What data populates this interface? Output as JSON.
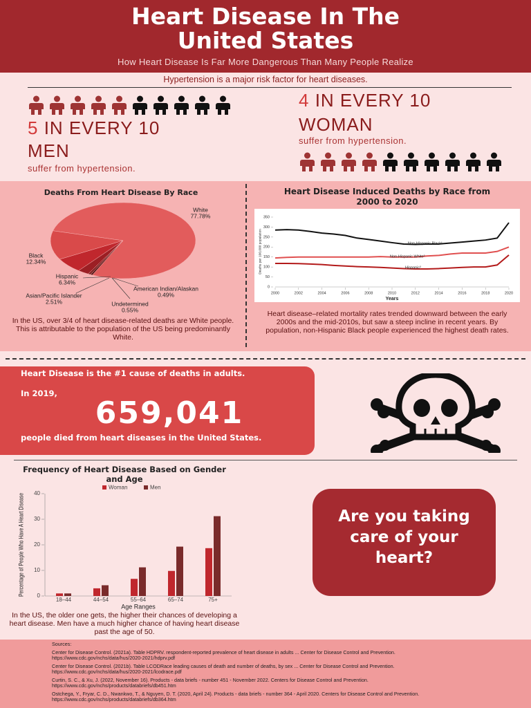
{
  "header": {
    "title": "Heart Disease In The United States",
    "subtitle": "How Heart Disease Is Far More Dangerous Than Many People Realize"
  },
  "hypertension": {
    "heading": "Hypertension is a major risk factor for heart diseases.",
    "men": {
      "number": "5",
      "ratio_text": "IN EVERY 10",
      "group": "MEN",
      "note": "suffer from hypertension.",
      "affected": 5,
      "total": 10,
      "affected_color": "#9e3434",
      "other_color": "#111111"
    },
    "women": {
      "number": "4",
      "ratio_text": "IN EVERY 10",
      "group": "WOMAN",
      "note": "suffer from hypertension.",
      "affected": 4,
      "total": 10,
      "affected_color": "#9e3434",
      "other_color": "#111111"
    }
  },
  "chart_data": [
    {
      "type": "pie",
      "title": "Deaths From Heart Disease By Race",
      "categories": [
        "White",
        "Black",
        "Hispanic",
        "Asian/Pacific Islander",
        "Undetermined",
        "American Indian/Alaskan"
      ],
      "values": [
        77.78,
        12.34,
        6.34,
        2.51,
        0.55,
        0.49
      ],
      "value_labels": [
        "77.78%",
        "12.34%",
        "6.34%",
        "2.51%",
        "0.55%",
        "0.49%"
      ],
      "colors": [
        "#e25c5c",
        "#d94a4a",
        "#c0272d",
        "#9c1f24",
        "#7a1c1c",
        "#5a1818"
      ],
      "caption": "In the US, over 3/4 of heart disease-related deaths are White people. This is attributable to the population of the US being predominantly White."
    },
    {
      "type": "line",
      "title": "Heart Disease Induced Deaths by Race from 2000 to 2020",
      "xlabel": "Years",
      "ylabel": "Deaths per 100,000 population",
      "x": [
        2000,
        2001,
        2002,
        2003,
        2004,
        2005,
        2006,
        2007,
        2008,
        2009,
        2010,
        2011,
        2012,
        2013,
        2014,
        2015,
        2016,
        2017,
        2018,
        2019,
        2020
      ],
      "series": [
        {
          "name": "Non-Hispanic Black¹",
          "color": "#111111",
          "values": [
            285,
            287,
            285,
            278,
            270,
            265,
            258,
            245,
            238,
            230,
            222,
            215,
            213,
            215,
            215,
            220,
            225,
            230,
            235,
            245,
            322
          ]
        },
        {
          "name": "Non-Hispanic White²",
          "color": "#e04f4f",
          "values": [
            145,
            148,
            150,
            150,
            150,
            150,
            150,
            150,
            150,
            152,
            150,
            150,
            150,
            155,
            158,
            165,
            170,
            170,
            170,
            178,
            200
          ]
        },
        {
          "name": "Hispanic²",
          "color": "#b31a1a",
          "values": [
            118,
            118,
            117,
            115,
            112,
            108,
            105,
            102,
            100,
            98,
            95,
            92,
            90,
            90,
            92,
            95,
            98,
            100,
            100,
            110,
            160
          ]
        }
      ],
      "xlim": [
        2000,
        2020
      ],
      "xticks": [
        2000,
        2002,
        2004,
        2006,
        2008,
        2010,
        2012,
        2014,
        2016,
        2018,
        2020
      ],
      "ylim": [
        0,
        350
      ],
      "yticks": [
        0,
        50,
        100,
        150,
        200,
        250,
        300,
        350
      ],
      "caption": "Heart disease–related mortality rates trended downward between the early 2000s and the mid-2010s, but saw a steep incline in recent years. By population, non-Hispanic Black people experienced the highest death rates."
    },
    {
      "type": "bar",
      "title": "Frequency of Heart Disease Based on Gender and Age",
      "xlabel": "Age Ranges",
      "ylabel": "Percentage of People Who Have A Heart Disease",
      "categories": [
        "18–44",
        "44–54",
        "55–64",
        "65–74",
        "75+"
      ],
      "series": [
        {
          "name": "Woman",
          "color": "#c0272d",
          "values": [
            1,
            3,
            6.7,
            9.8,
            18.7
          ]
        },
        {
          "name": "Men",
          "color": "#7a2b2b",
          "values": [
            1,
            4.2,
            11.2,
            19.3,
            31.2
          ]
        }
      ],
      "ylim": [
        0,
        40
      ],
      "yticks": [
        0,
        10,
        20,
        30,
        40
      ],
      "caption": "In the US, the older one gets, the higher their chances of developing a heart disease. Men have a much higher chance of having heart disease past the age of 50."
    }
  ],
  "stat": {
    "line1": "Heart Disease is the #1 cause of deaths in adults.",
    "line2": "In 2019,",
    "number": "659,041",
    "line3": "people died from heart diseases in the United States."
  },
  "callout": {
    "text": "Are you taking care of your heart?"
  },
  "sources": {
    "heading": "Sources:",
    "entries": [
      {
        "text": "Center for Disease Control. (2021a). Table HDPRV. respondent-reported prevalence of heart disease in adults ... Center for Disease Control and Prevention.",
        "url": "https://www.cdc.gov/nchs/data/hus/2020-2021/hdprv.pdf"
      },
      {
        "text": "Center for Disease Control. (2021b). Table LCODRace leading causes of death and number of deaths, by sex ... Center for Disease Control and Prevention.",
        "url": "https://www.cdc.gov/nchs/data/hus/2020-2021/lcodrace.pdf"
      },
      {
        "text": "Curtin, S. C., & Xu, J. (2022, November 16). Products - data briefs - number 451 - November 2022. Centers for Disease Control and Prevention.",
        "url": "https://www.cdc.gov/nchs/products/databriefs/db451.htm"
      },
      {
        "text": "Ostchega, Y., Fryar, C. D., Nwankwo, T., & Nguyen, D. T. (2020, April 24). Products - data briefs - number 364 - April 2020. Centers for Disease Control and Prevention.",
        "url": "https://www.cdc.gov/nchs/products/databriefs/db364.htm"
      }
    ]
  }
}
